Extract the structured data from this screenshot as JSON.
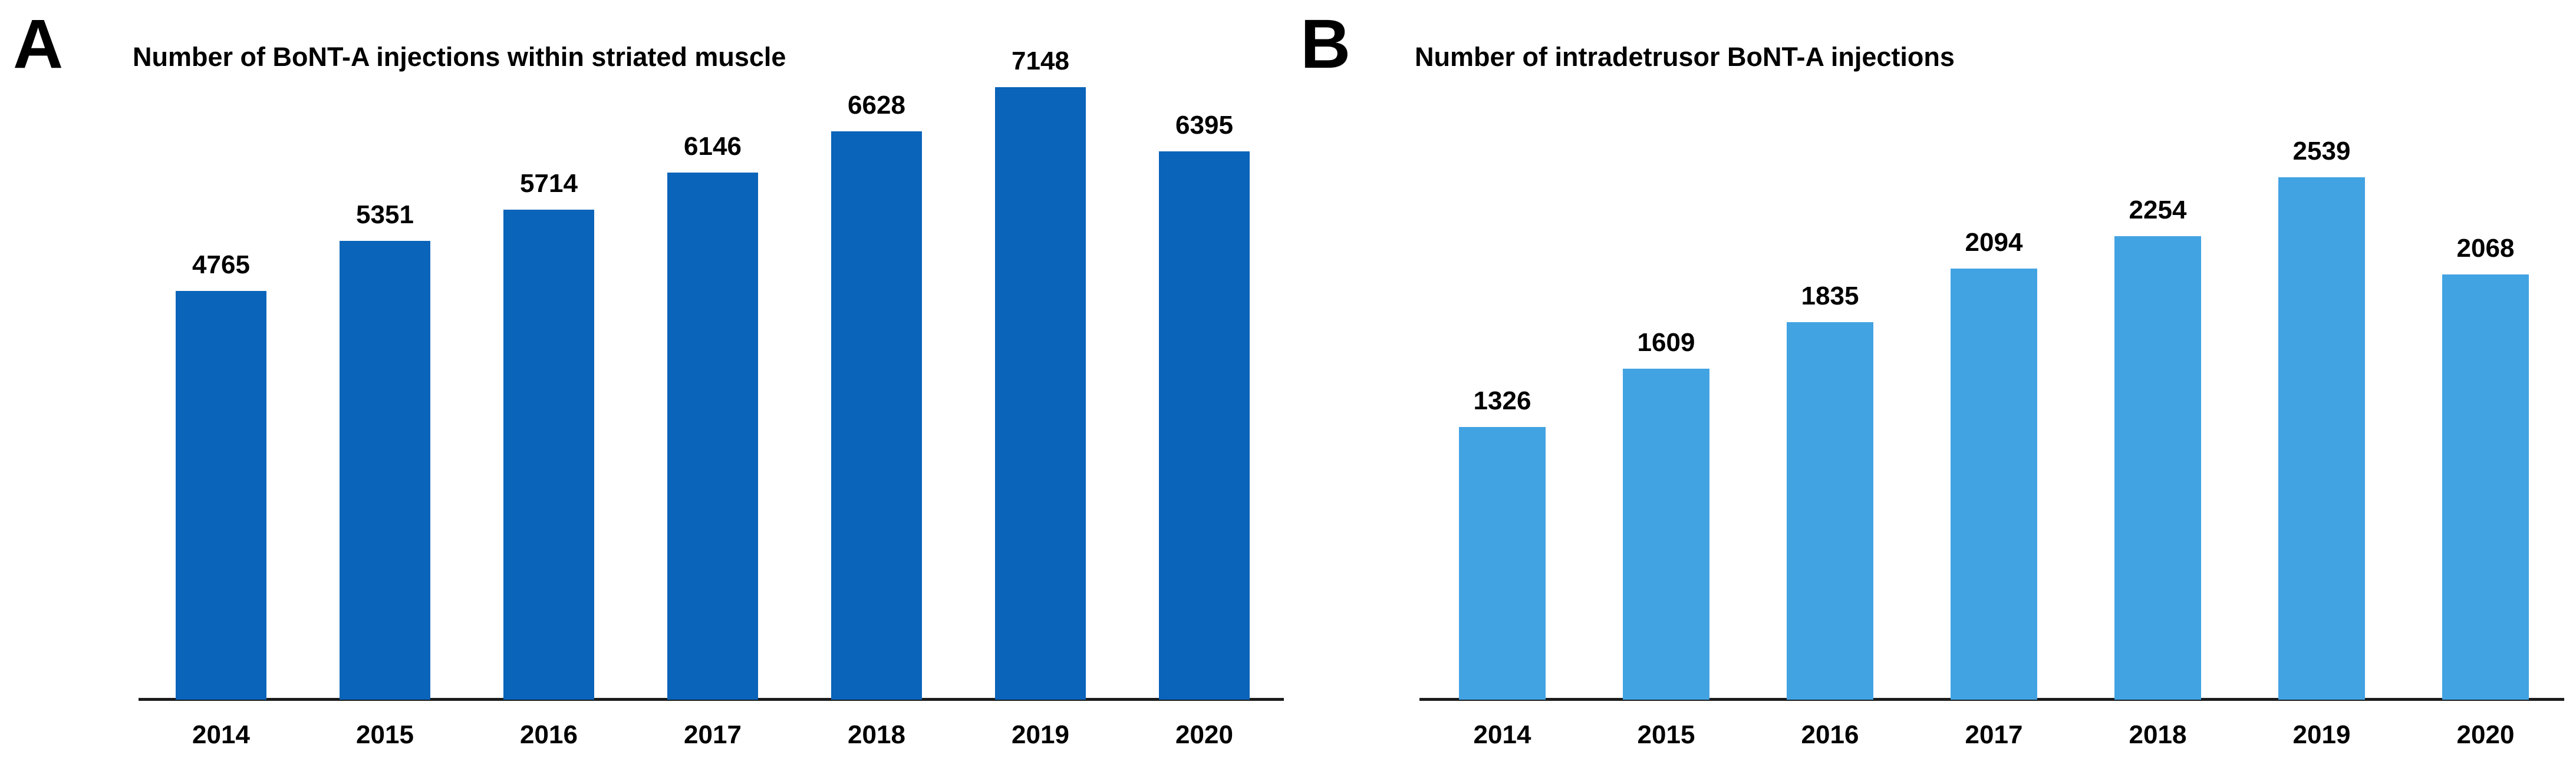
{
  "figure": {
    "background_color": "#ffffff",
    "text_color": "#000000",
    "axis_line_color": "#1c1c1c"
  },
  "chart_data": [
    {
      "panel_label": "A",
      "type": "bar",
      "title": "Number of BoNT-A injections within striated muscle",
      "categories": [
        "2014",
        "2015",
        "2016",
        "2017",
        "2018",
        "2019",
        "2020"
      ],
      "values": [
        4765,
        5351,
        5714,
        6146,
        6628,
        7148,
        6395
      ],
      "bar_color": "#0a64b9",
      "xlabel": "",
      "ylabel": "",
      "ylim": [
        0,
        7200
      ],
      "grid": false,
      "legend": "none",
      "data_labels_shown": true
    },
    {
      "panel_label": "B",
      "type": "bar",
      "title": "Number of intradetrusor BoNT-A injections",
      "categories": [
        "2014",
        "2015",
        "2016",
        "2017",
        "2018",
        "2019",
        "2020"
      ],
      "values": [
        1326,
        1609,
        1835,
        2094,
        2254,
        2539,
        2068
      ],
      "bar_color": "#42a3e3",
      "xlabel": "",
      "ylabel": "",
      "ylim": [
        0,
        3000
      ],
      "grid": false,
      "legend": "none",
      "data_labels_shown": true
    }
  ]
}
